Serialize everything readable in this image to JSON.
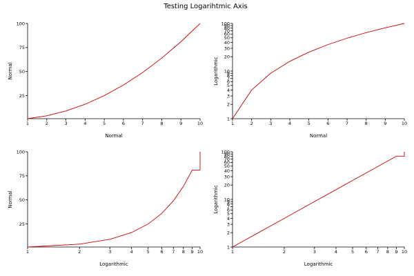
{
  "figure": {
    "title": "Testing Logarihtmic Axis"
  },
  "chart_data": [
    {
      "type": "line",
      "xlabel": "Normal",
      "ylabel": "Normal",
      "xscale": "linear",
      "yscale": "linear",
      "xlim": [
        1,
        10
      ],
      "ylim": [
        1,
        100
      ],
      "xticks": [
        1,
        2,
        3,
        4,
        5,
        6,
        7,
        8,
        9,
        10
      ],
      "yticks": [
        25,
        50,
        75,
        100
      ],
      "grid": false,
      "series": [
        {
          "color": "#cc0000",
          "x": [
            1,
            2,
            3,
            4,
            5,
            6,
            7,
            8,
            9,
            10
          ],
          "y": [
            1,
            4,
            9,
            16,
            25,
            36,
            49,
            64,
            81,
            100
          ]
        }
      ]
    },
    {
      "type": "line",
      "xlabel": "Normal",
      "ylabel": "Logarithmic",
      "xscale": "linear",
      "yscale": "log",
      "xlim": [
        1,
        10
      ],
      "ylim": [
        1,
        100
      ],
      "xticks": [
        1,
        2,
        3,
        4,
        5,
        6,
        7,
        8,
        9,
        10
      ],
      "yticks": [
        1,
        2,
        3,
        4,
        5,
        6,
        7,
        8,
        9,
        10,
        20,
        30,
        40,
        50,
        60,
        70,
        80,
        90,
        100
      ],
      "grid": false,
      "series": [
        {
          "color": "#cc0000",
          "x": [
            1,
            2,
            3,
            4,
            5,
            6,
            7,
            8,
            9,
            10
          ],
          "y": [
            1,
            4,
            9,
            16,
            25,
            36,
            49,
            64,
            81,
            100
          ]
        }
      ]
    },
    {
      "type": "line",
      "xlabel": "Logarithmic",
      "ylabel": "Normal",
      "xscale": "log",
      "yscale": "linear",
      "xlim": [
        1,
        10
      ],
      "ylim": [
        1,
        100
      ],
      "xticks": [
        1,
        2,
        3,
        4,
        5,
        6,
        7,
        8,
        9,
        10
      ],
      "yticks": [
        25,
        50,
        75,
        100
      ],
      "grid": false,
      "series": [
        {
          "color": "#cc0000",
          "x": [
            1,
            2,
            3,
            4,
            5,
            6,
            7,
            8,
            9,
            10,
            10
          ],
          "y": [
            1,
            4,
            9,
            16,
            25,
            36,
            49,
            64,
            81,
            81,
            100
          ]
        }
      ]
    },
    {
      "type": "line",
      "xlabel": "Logarithmic",
      "ylabel": "Logarithmic",
      "xscale": "log",
      "yscale": "log",
      "xlim": [
        1,
        10
      ],
      "ylim": [
        1,
        100
      ],
      "xticks": [
        1,
        2,
        3,
        4,
        5,
        6,
        7,
        8,
        9,
        10
      ],
      "yticks": [
        1,
        2,
        3,
        4,
        5,
        6,
        7,
        8,
        9,
        10,
        20,
        30,
        40,
        50,
        60,
        70,
        80,
        90,
        100
      ],
      "grid": false,
      "series": [
        {
          "color": "#cc0000",
          "x": [
            1,
            2,
            3,
            4,
            5,
            6,
            7,
            8,
            9,
            10,
            10
          ],
          "y": [
            1,
            4,
            9,
            16,
            25,
            36,
            49,
            64,
            81,
            81,
            100
          ]
        }
      ]
    }
  ]
}
